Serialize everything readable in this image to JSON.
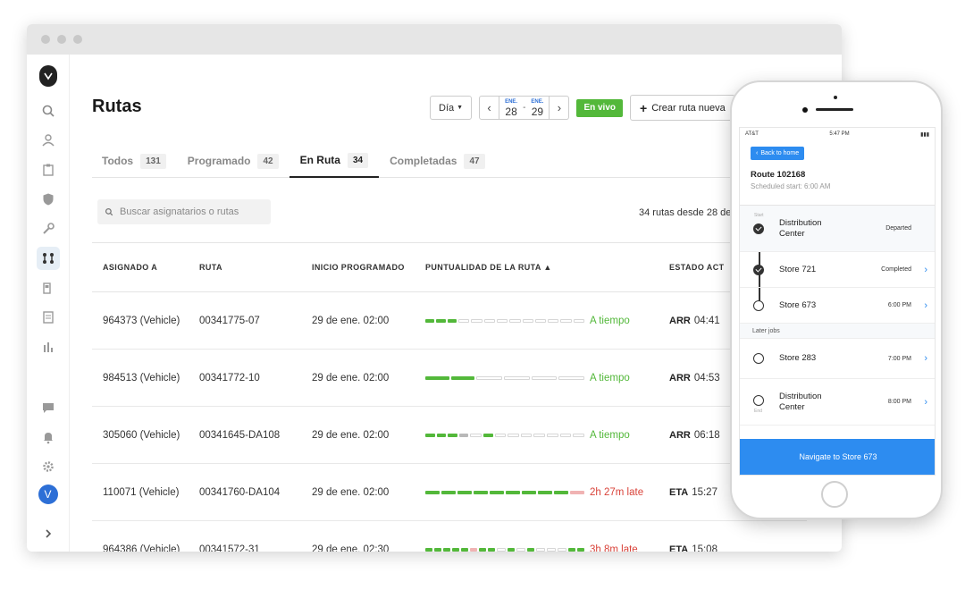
{
  "app": {
    "page_title": "Rutas",
    "toolbar": {
      "day_label": "Día",
      "date_from_month": "ENE.",
      "date_from_day": "28",
      "date_to_month": "ENE.",
      "date_to_day": "29",
      "date_sep": "-",
      "live_label": "En vivo",
      "create_label": "Crear ruta nueva"
    },
    "tabs": [
      {
        "label": "Todos",
        "count": "131",
        "active": false
      },
      {
        "label": "Programado",
        "count": "42",
        "active": false
      },
      {
        "label": "En Ruta",
        "count": "34",
        "active": true
      },
      {
        "label": "Completadas",
        "count": "47",
        "active": false
      }
    ],
    "search": {
      "placeholder": "Buscar asignatarios o rutas"
    },
    "summary": "34 rutas desde 28 de",
    "columns": [
      "ASIGNADO A",
      "RUTA",
      "INICIO PROGRAMADO",
      "PUNTUALIDAD DE LA RUTA ▲",
      "ESTADO ACT"
    ],
    "rows": [
      {
        "assigned": "964373 (Vehicle)",
        "route": "00341775-07",
        "start": "29 de ene. 02:00",
        "bar": "gggeeeeeeeeee",
        "status_text": "A tiempo",
        "status_kind": "ok",
        "state_code": "ARR",
        "state_time": "04:41"
      },
      {
        "assigned": "984513 (Vehicle)",
        "route": "00341772-10",
        "start": "29 de ene. 02:00",
        "bar": "ggeeee",
        "status_text": "A tiempo",
        "status_kind": "ok",
        "state_code": "ARR",
        "state_time": "04:53"
      },
      {
        "assigned": "305060 (Vehicle)",
        "route": "00341645-DA108",
        "start": "29 de ene. 02:00",
        "bar": "gggxegeeeeeee",
        "status_text": "A tiempo",
        "status_kind": "ok",
        "state_code": "ARR",
        "state_time": "06:18"
      },
      {
        "assigned": "110071 (Vehicle)",
        "route": "00341760-DA104",
        "start": "29 de ene. 02:00",
        "bar": "gggggggggp",
        "status_text": "2h 27m late",
        "status_kind": "late",
        "state_code": "ETA",
        "state_time": "15:27"
      },
      {
        "assigned": "964386 (Vehicle)",
        "route": "00341572-31",
        "start": "29 de ene. 02:30",
        "bar": "gggggpggegegeeegg",
        "status_text": "3h 8m late",
        "status_kind": "late",
        "state_code": "ETA",
        "state_time": "15:08"
      }
    ]
  },
  "sidebar": {
    "icons": [
      "logo-icon",
      "search-icon",
      "people-icon",
      "clipboard-icon",
      "shield-icon",
      "wrench-icon",
      "routes-icon",
      "fuel-icon",
      "document-icon",
      "reports-icon"
    ],
    "bottom_icons": [
      "chat-icon",
      "bell-icon",
      "gear-icon"
    ],
    "avatar_initial": "V"
  },
  "phone": {
    "carrier": "AT&T",
    "time": "5:47 PM",
    "back_label": "Back to home",
    "route_title": "Route 102168",
    "route_sub": "Scheduled start: 6:00 AM",
    "start_label": "Start",
    "end_label": "End",
    "stops": [
      {
        "name": "Distribution Center",
        "status": "Departed",
        "done": true
      },
      {
        "name": "Store 721",
        "status": "Completed",
        "done": true
      },
      {
        "name": "Store 673",
        "status": "6:00 PM",
        "done": false
      }
    ],
    "later_label": "Later jobs",
    "later_stops": [
      {
        "name": "Store 283",
        "status": "7:00 PM"
      },
      {
        "name": "Distribution Center",
        "status": "8:00 PM"
      }
    ],
    "nav_label": "Navigate to Store 673",
    "accent": "#2d8cf0"
  },
  "colors": {
    "accent_green": "#53b83a",
    "late_red": "#d9433a",
    "brand_blue": "#2d6fd6"
  }
}
